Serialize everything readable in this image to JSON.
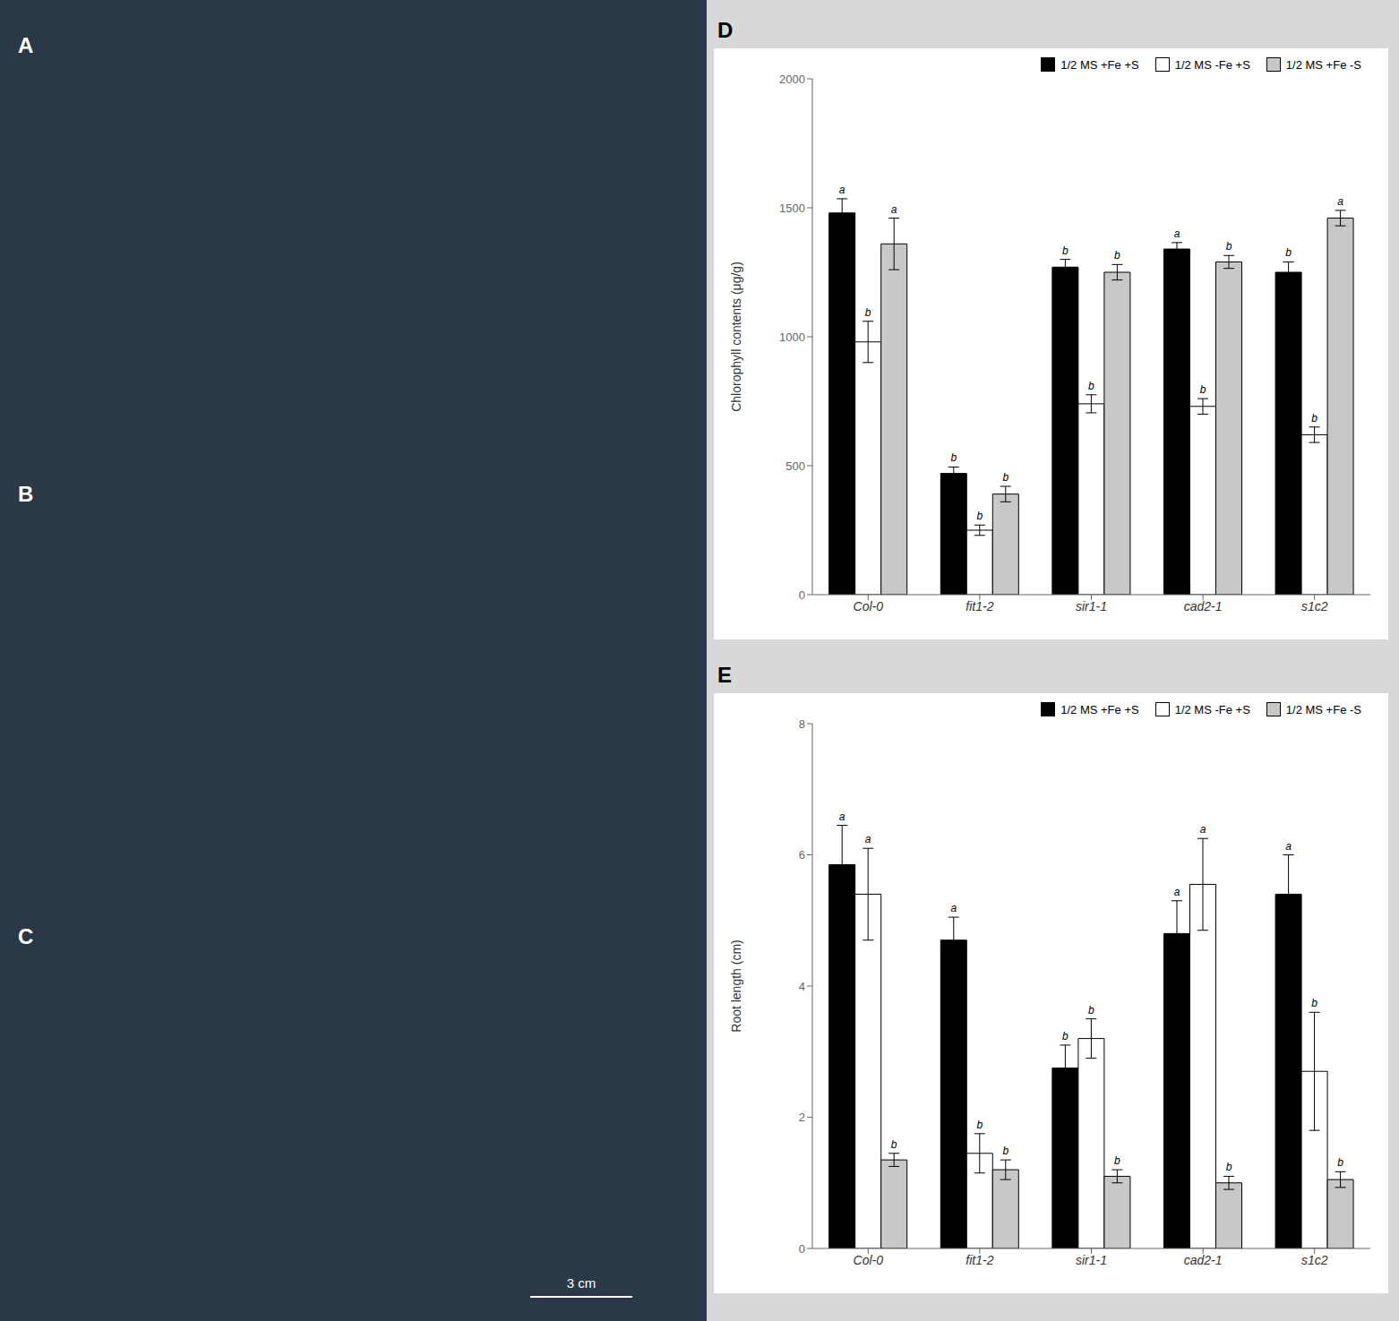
{
  "annotations": [
    "A",
    "B",
    "C",
    "3 cm"
  ],
  "chart_data": [
    {
      "type": "bar",
      "title": "D",
      "categories": [
        "Col-0",
        "fit1-2",
        "sir1-1",
        "cad2-1",
        "s1c2"
      ],
      "ylabel": "Chlorophyll contents (μg/g)",
      "ylim": [
        0,
        2000
      ],
      "yticks": [
        0,
        500,
        1000,
        1500,
        2000
      ],
      "grid": false,
      "legend": "upper right",
      "series": [
        {
          "name": "1/2 MS +Fe +S",
          "color": "#000000",
          "values": [
            1480,
            470,
            1270,
            1340,
            1250
          ],
          "errors": [
            55,
            25,
            30,
            25,
            40
          ],
          "annotations": [
            "a",
            "b",
            "b",
            "a",
            "b"
          ]
        },
        {
          "name": "1/2 MS -Fe +S",
          "color": "#ffffff",
          "values": [
            980,
            250,
            740,
            730,
            620
          ],
          "errors": [
            80,
            20,
            35,
            30,
            30
          ],
          "annotations": [
            "b",
            "b",
            "b",
            "b",
            "b"
          ]
        },
        {
          "name": "1/2 MS +Fe -S",
          "color": "#c8c8c8",
          "values": [
            1360,
            390,
            1250,
            1290,
            1460
          ],
          "errors": [
            100,
            30,
            30,
            25,
            30
          ],
          "annotations": [
            "a",
            "b",
            "b",
            "b",
            "a"
          ]
        }
      ]
    },
    {
      "type": "bar",
      "title": "E",
      "categories": [
        "Col-0",
        "fit1-2",
        "sir1-1",
        "cad2-1",
        "s1c2"
      ],
      "ylabel": "Root length (cm)",
      "ylim": [
        0,
        8
      ],
      "yticks": [
        0,
        2,
        4,
        6,
        8
      ],
      "grid": false,
      "legend": "upper right",
      "series": [
        {
          "name": "1/2 MS +Fe +S",
          "color": "#000000",
          "values": [
            5.85,
            4.7,
            2.75,
            4.8,
            5.4
          ],
          "errors": [
            0.6,
            0.35,
            0.35,
            0.5,
            0.6
          ],
          "annotations": [
            "a",
            "a",
            "b",
            "a",
            "a"
          ]
        },
        {
          "name": "1/2 MS -Fe +S",
          "color": "#ffffff",
          "values": [
            5.4,
            1.45,
            3.2,
            5.55,
            2.7
          ],
          "errors": [
            0.7,
            0.3,
            0.3,
            0.7,
            0.9
          ],
          "annotations": [
            "a",
            "b",
            "b",
            "a",
            "b"
          ]
        },
        {
          "name": "1/2 MS +Fe -S",
          "color": "#c8c8c8",
          "values": [
            1.35,
            1.2,
            1.1,
            1.0,
            1.05
          ],
          "errors": [
            0.1,
            0.15,
            0.1,
            0.1,
            0.12
          ],
          "annotations": [
            "b",
            "b",
            "b",
            "b",
            "b"
          ]
        }
      ]
    }
  ]
}
